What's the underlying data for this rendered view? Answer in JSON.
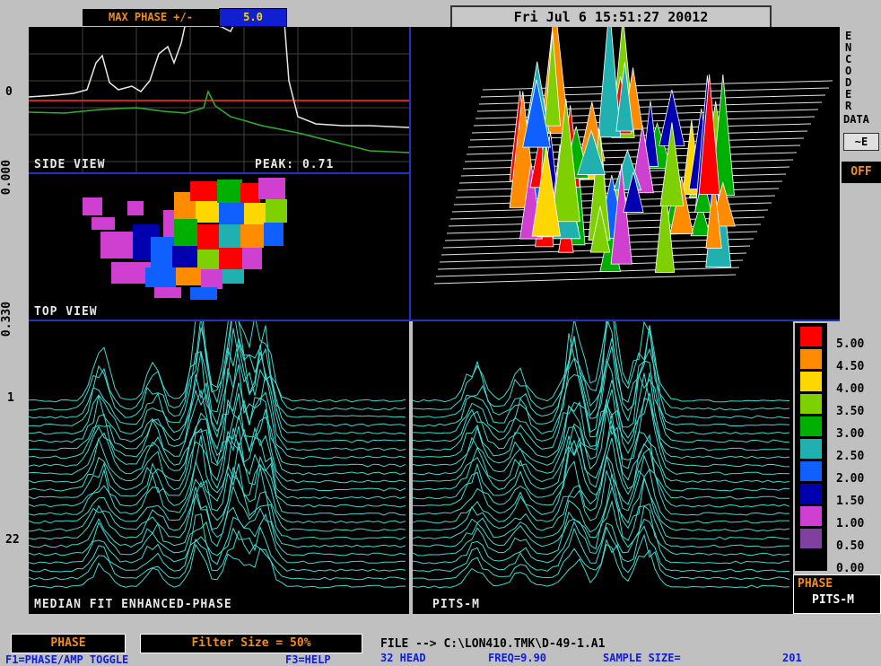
{
  "header": {
    "max_phase_label": "MAX PHASE +/-",
    "max_phase_value": "5.0",
    "datetime": "Fri Jul  6 15:51:27 20012"
  },
  "left_axis": {
    "label_0": "0",
    "label_0_000": "0.000",
    "label_0_330": "0.330",
    "label_1": "1",
    "label_22": "22"
  },
  "panels": {
    "side_view": {
      "label": "SIDE VIEW",
      "peak": "PEAK: 0.71"
    },
    "top_view": {
      "label": "TOP VIEW"
    },
    "median": {
      "label": "MEDIAN FIT ENHANCED-PHASE"
    },
    "pits": {
      "label": "PITS-M"
    }
  },
  "encoder": {
    "title_lines": [
      "E",
      "N",
      "C",
      "O",
      "D",
      "E",
      "R"
    ],
    "data_label": "DATA",
    "arrow_button": "~E",
    "off_button": "OFF"
  },
  "legend": {
    "values": [
      "5.00",
      "4.50",
      "4.00",
      "3.50",
      "3.00",
      "2.50",
      "2.00",
      "1.50",
      "1.00",
      "0.50",
      "0.00"
    ],
    "colors": [
      "#ff0000",
      "#ff8c00",
      "#ffd700",
      "#7fd000",
      "#00b000",
      "#20b0b0",
      "#1060ff",
      "#0000b0",
      "#d040d0",
      "#8040a0",
      "#000000"
    ],
    "mode": "PHASE",
    "submode": "PITS-M"
  },
  "footer": {
    "phase_box": "PHASE",
    "filter_box": "Filter Size = 50%",
    "f1_hint": "F1=PHASE/AMP TOGGLE",
    "f3_hint": "F3=HELP",
    "file_line": "FILE --> C:\\LON410.TMK\\D-49-1.A1",
    "status_line_1": "32 HEAD",
    "status_line_2": "FREQ=9.90",
    "status_line_3": "SAMPLE SIZE=",
    "status_line_4": "201"
  }
}
